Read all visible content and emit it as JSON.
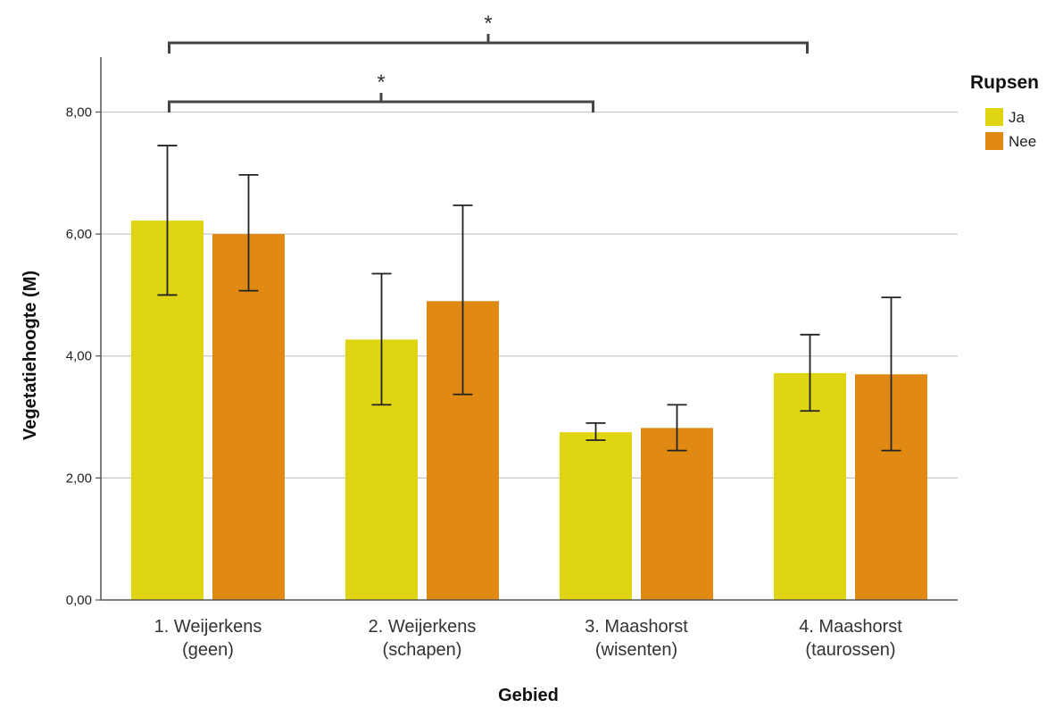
{
  "chart_data": {
    "type": "bar",
    "xlabel": "Gebied",
    "ylabel": "Vegetatiehoogte (M)",
    "ylim": [
      0,
      8.9
    ],
    "yticks": [
      "0,00",
      "2,00",
      "4,00",
      "6,00",
      "8,00"
    ],
    "ytick_values": [
      0,
      2,
      4,
      6,
      8
    ],
    "grid": true,
    "categories": [
      [
        "1. Weijerkens",
        "(geen)"
      ],
      [
        "2. Weijerkens",
        "(schapen)"
      ],
      [
        "3. Maashorst",
        "(wisenten)"
      ],
      [
        "4. Maashorst",
        "(taurossen)"
      ]
    ],
    "legend": {
      "title": "Rupsen",
      "position": "right"
    },
    "series": [
      {
        "name": "Ja",
        "color": "#e0d512",
        "values": [
          6.22,
          4.27,
          2.75,
          3.72
        ],
        "error_low": [
          5.0,
          3.2,
          2.62,
          3.1
        ],
        "error_high": [
          7.45,
          5.35,
          2.9,
          4.35
        ]
      },
      {
        "name": "Nee",
        "color": "#e08a14",
        "values": [
          6.0,
          4.9,
          2.82,
          3.7
        ],
        "error_low": [
          5.07,
          3.37,
          2.45,
          2.45
        ],
        "error_high": [
          6.97,
          6.47,
          3.2,
          4.96
        ]
      }
    ],
    "annotations": [
      {
        "from": 0,
        "to": 2,
        "label": "*"
      },
      {
        "from": 0,
        "to": 3,
        "label": "*"
      }
    ]
  }
}
